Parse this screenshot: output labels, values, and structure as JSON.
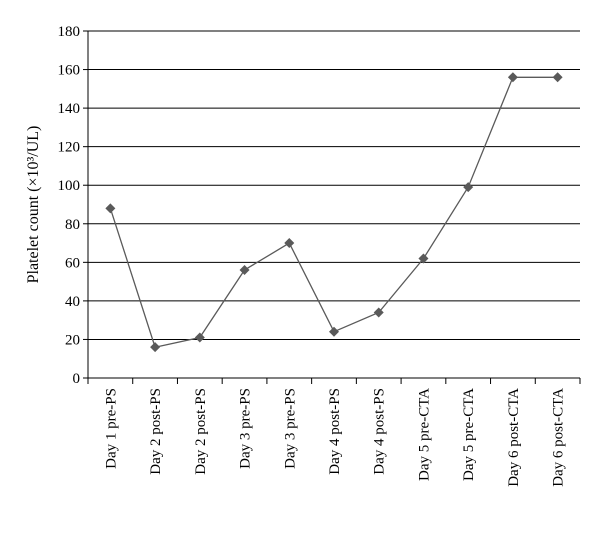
{
  "chart_data": {
    "type": "line",
    "title": "",
    "xlabel": "",
    "ylabel": "Platelet count (×10³/UL)",
    "ylim": [
      0,
      180
    ],
    "yticks": [
      0,
      20,
      40,
      60,
      80,
      100,
      120,
      140,
      160,
      180
    ],
    "grid": "horizontal",
    "legend": "none",
    "categories": [
      "Day 1 pre-PS",
      "Day 2 post-PS",
      "Day 2 post-PS",
      "Day 3 pre-PS",
      "Day 3 pre-PS",
      "Day 4 post-PS",
      "Day 4 post-PS",
      "Day 5 pre-CTA",
      "Day 5 pre-CTA",
      "Day 6 post-CTA",
      "Day 6 post-CTA"
    ],
    "series": [
      {
        "values": [
          88,
          16,
          21,
          56,
          70,
          24,
          34,
          62,
          99,
          156,
          156
        ],
        "color": "#5a5a5a",
        "marker": "diamond"
      }
    ]
  }
}
